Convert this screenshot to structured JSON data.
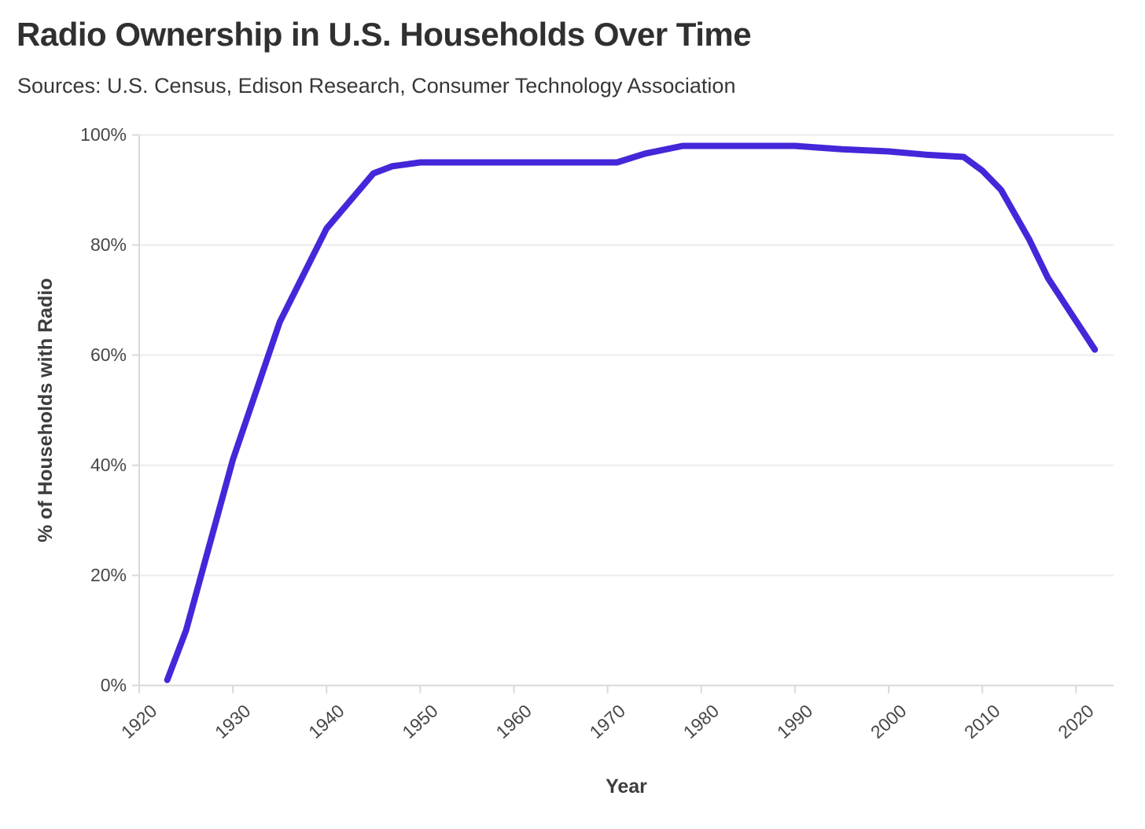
{
  "header": {
    "title": "Radio Ownership in U.S. Households Over Time",
    "subtitle": "Sources: U.S. Census, Edison Research, Consumer Technology Association"
  },
  "chart_data": {
    "type": "line",
    "title": "Radio Ownership in U.S. Households Over Time",
    "subtitle": "Sources: U.S. Census, Edison Research, Consumer Technology Association",
    "xlabel": "Year",
    "ylabel": "% of Households with Radio",
    "xlim": [
      1920,
      2024
    ],
    "ylim": [
      0,
      100
    ],
    "grid": "horizontal",
    "legend_position": "none",
    "line_color": "#4427D9",
    "x_ticks": {
      "values": [
        1920,
        1930,
        1940,
        1950,
        1960,
        1970,
        1980,
        1990,
        2000,
        2010,
        2020
      ],
      "labels": [
        "1920",
        "1930",
        "1940",
        "1950",
        "1960",
        "1970",
        "1980",
        "1990",
        "2000",
        "2010",
        "2020"
      ]
    },
    "y_ticks": {
      "values": [
        0,
        20,
        40,
        60,
        80,
        100
      ],
      "labels": [
        "0%",
        "20%",
        "40%",
        "60%",
        "80%",
        "100%"
      ]
    },
    "series": [
      {
        "name": "% of Households with Radio",
        "points": [
          [
            1923,
            1
          ],
          [
            1925,
            10
          ],
          [
            1930,
            41
          ],
          [
            1935,
            66
          ],
          [
            1940,
            83
          ],
          [
            1945,
            93
          ],
          [
            1947,
            94.3
          ],
          [
            1950,
            95
          ],
          [
            1955,
            95
          ],
          [
            1960,
            95
          ],
          [
            1965,
            95
          ],
          [
            1970,
            95
          ],
          [
            1971,
            95
          ],
          [
            1974,
            96.6
          ],
          [
            1978,
            98
          ],
          [
            1985,
            98
          ],
          [
            1990,
            98
          ],
          [
            1995,
            97.4
          ],
          [
            2000,
            97
          ],
          [
            2004,
            96.4
          ],
          [
            2008,
            96
          ],
          [
            2010,
            93.5
          ],
          [
            2012,
            90
          ],
          [
            2015,
            81
          ],
          [
            2017,
            74
          ],
          [
            2019,
            68.8
          ],
          [
            2022,
            61
          ]
        ]
      }
    ]
  },
  "colors": {
    "line": "#4427D9",
    "title_text": "#303030",
    "tick_text": "#474747",
    "gridline": "#ebebeb",
    "axisline": "#d9d9d9"
  }
}
